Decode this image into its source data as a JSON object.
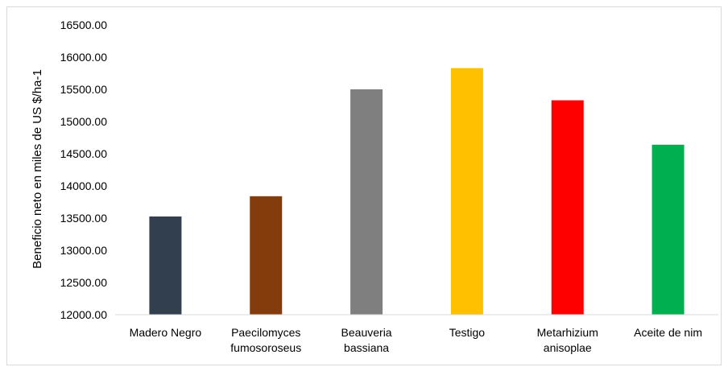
{
  "chart_data": {
    "type": "bar",
    "title": "",
    "xlabel": "",
    "ylabel": "Beneficio neto en miles de US $/ha-1",
    "ylim": [
      12000,
      16500
    ],
    "yticks": [
      "12000.00",
      "12500.00",
      "13000.00",
      "13500.00",
      "14000.00",
      "14500.00",
      "15000.00",
      "15500.00",
      "16000.00",
      "16500.00"
    ],
    "grid": false,
    "legend": "none",
    "categories": [
      [
        "Madero Negro"
      ],
      [
        "Paecilomyces",
        "fumosoroseus"
      ],
      [
        "Beauveria",
        "bassiana"
      ],
      [
        "Testigo"
      ],
      [
        "Metarhizium",
        "anisoplae"
      ],
      [
        "Aceite de nim"
      ]
    ],
    "values": [
      13525,
      13840,
      15500,
      15830,
      15330,
      14640
    ],
    "colors": [
      "#323f4f",
      "#843c0c",
      "#7f7f7f",
      "#ffc000",
      "#ff0000",
      "#00b050"
    ]
  }
}
